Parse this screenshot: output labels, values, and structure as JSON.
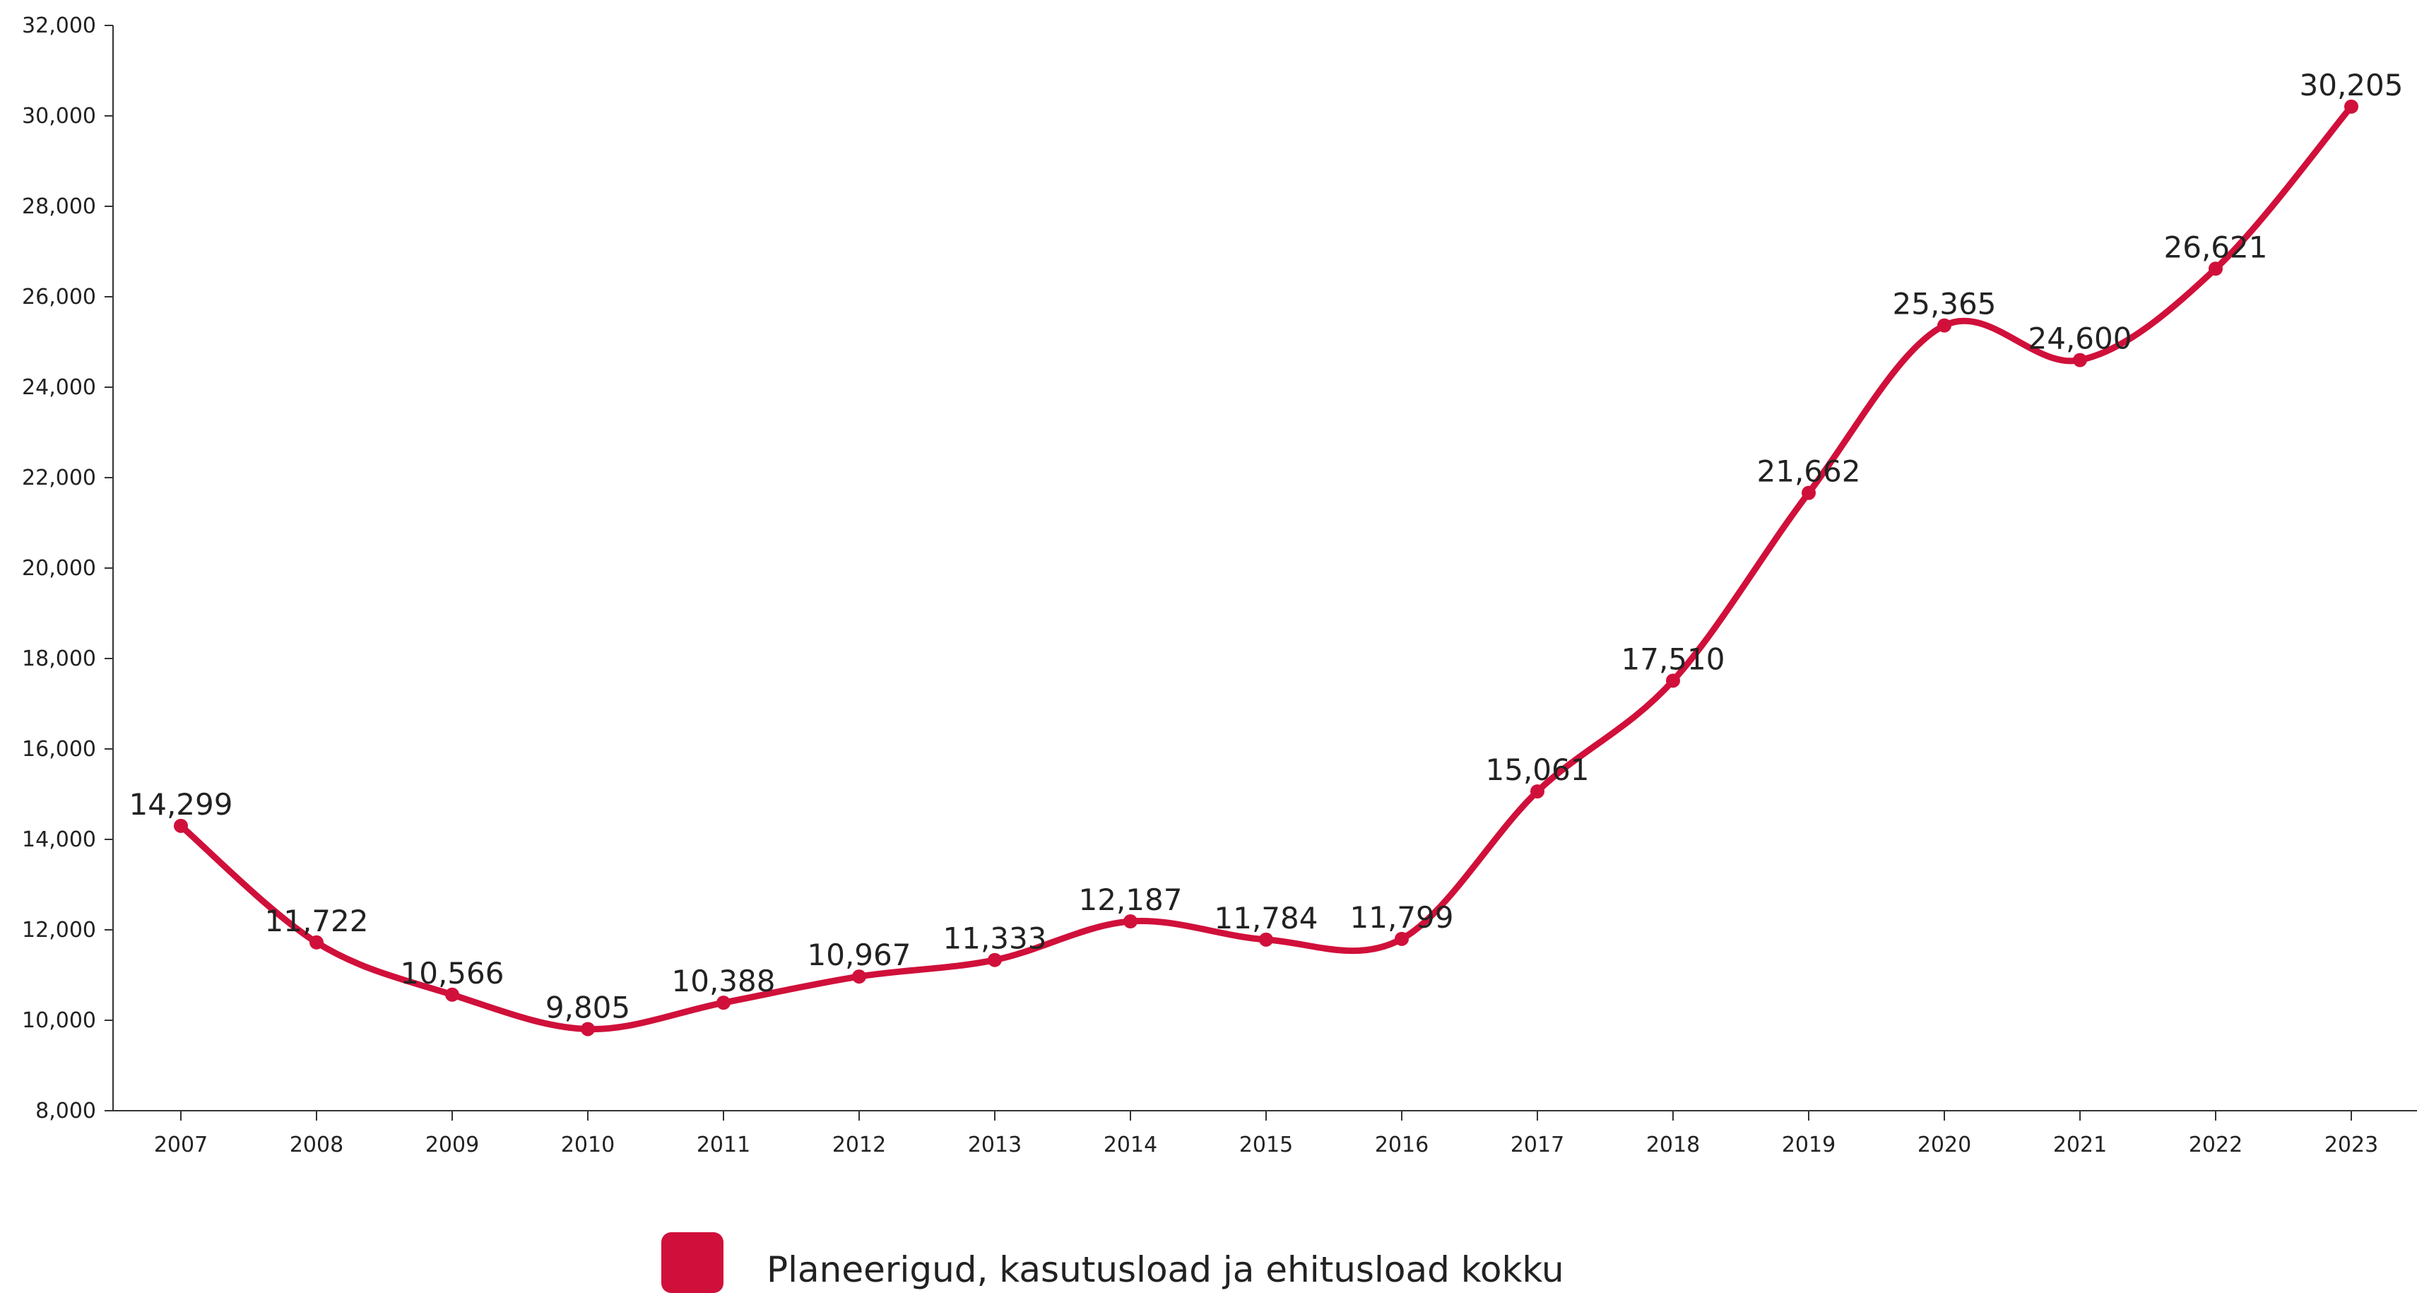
{
  "chart_data": {
    "type": "line",
    "title": "",
    "xlabel": "",
    "ylabel": "",
    "categories": [
      "2007",
      "2008",
      "2009",
      "2010",
      "2011",
      "2012",
      "2013",
      "2014",
      "2015",
      "2016",
      "2017",
      "2018",
      "2019",
      "2020",
      "2021",
      "2022",
      "2023"
    ],
    "series": [
      {
        "name": "Planeerigud, kasutusload ja ehitusload kokku",
        "color": "#D0103A",
        "values": [
          14299,
          11722,
          10566,
          9805,
          10388,
          10967,
          11333,
          12187,
          11784,
          11799,
          15061,
          17510,
          21662,
          25365,
          24600,
          26621,
          30205
        ],
        "labels": [
          "14,299",
          "11,722",
          "10,566",
          "9,805",
          "10,388",
          "10,967",
          "11,333",
          "12,187",
          "11,784",
          "11,799",
          "15,061",
          "17,510",
          "21,662",
          "25,365",
          "24,600",
          "26,621",
          "30,205"
        ]
      }
    ],
    "ylim": [
      8000,
      32000
    ],
    "yticks": [
      8000,
      10000,
      12000,
      14000,
      16000,
      18000,
      20000,
      22000,
      24000,
      26000,
      28000,
      30000,
      32000
    ],
    "ytick_labels": [
      "8,000",
      "10,000",
      "12,000",
      "14,000",
      "16,000",
      "18,000",
      "20,000",
      "22,000",
      "24,000",
      "26,000",
      "28,000",
      "30,000",
      "32,000"
    ],
    "grid": false,
    "smooth": true,
    "legend_position": "bottom"
  }
}
